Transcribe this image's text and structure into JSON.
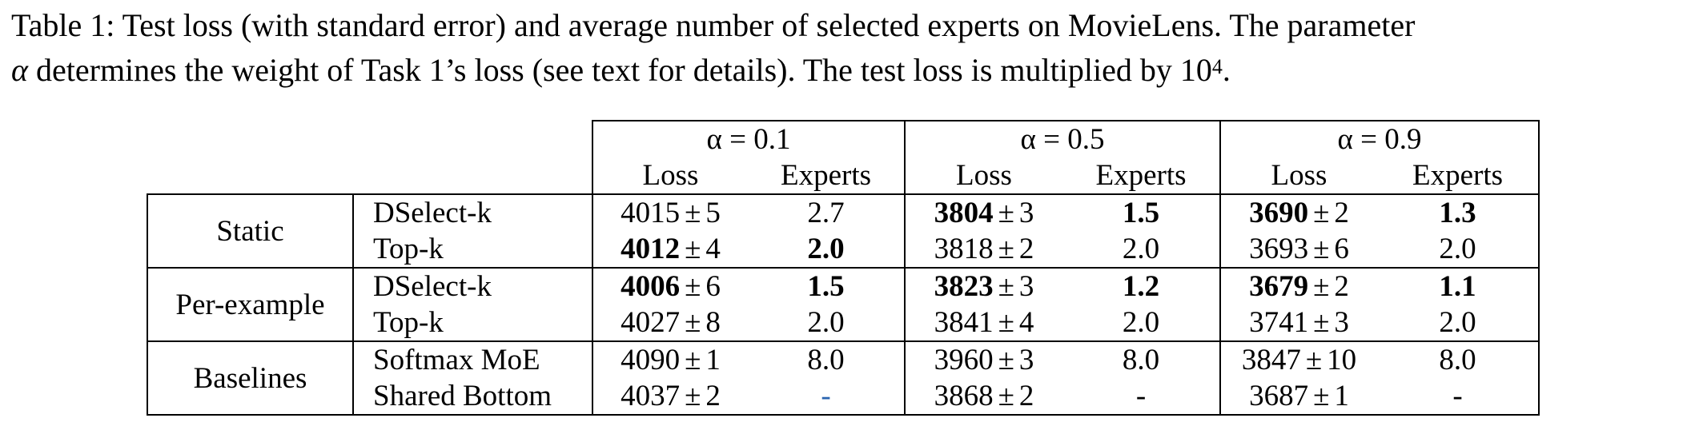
{
  "caption": {
    "label": "Table 1:",
    "line1": "Test loss (with standard error) and average number of selected experts on MovieLens. The parameter",
    "alpha_symbol": "α",
    "line2": "determines the weight of Task 1’s loss (see text for details). The test loss is multiplied by 10",
    "exponent": "4",
    "end": "."
  },
  "table": {
    "group_headers": [
      "α = 0.1",
      "α = 0.5",
      "α = 0.9"
    ],
    "sub_headers": [
      "Loss",
      "Experts",
      "Loss",
      "Experts",
      "Loss",
      "Experts"
    ],
    "pm": "±",
    "sections": [
      {
        "name": "Static",
        "rows": [
          {
            "method": "DSelect-k",
            "cells": [
              {
                "mean": "4015",
                "se": "5",
                "bold": false
              },
              {
                "val": "2.7",
                "bold": false
              },
              {
                "mean": "3804",
                "se": "3",
                "bold": true
              },
              {
                "val": "1.5",
                "bold": true
              },
              {
                "mean": "3690",
                "se": "2",
                "bold": true
              },
              {
                "val": "1.3",
                "bold": true
              }
            ]
          },
          {
            "method": "Top-k",
            "cells": [
              {
                "mean": "4012",
                "se": "4",
                "bold": true
              },
              {
                "val": "2.0",
                "bold": true
              },
              {
                "mean": "3818",
                "se": "2",
                "bold": false
              },
              {
                "val": "2.0",
                "bold": false
              },
              {
                "mean": "3693",
                "se": "6",
                "bold": false
              },
              {
                "val": "2.0",
                "bold": false
              }
            ]
          }
        ]
      },
      {
        "name": "Per-example",
        "rows": [
          {
            "method": "DSelect-k",
            "cells": [
              {
                "mean": "4006",
                "se": "6",
                "bold": true
              },
              {
                "val": "1.5",
                "bold": true
              },
              {
                "mean": "3823",
                "se": "3",
                "bold": true
              },
              {
                "val": "1.2",
                "bold": true
              },
              {
                "mean": "3679",
                "se": "2",
                "bold": true
              },
              {
                "val": "1.1",
                "bold": true
              }
            ]
          },
          {
            "method": "Top-k",
            "cells": [
              {
                "mean": "4027",
                "se": "8",
                "bold": false
              },
              {
                "val": "2.0",
                "bold": false
              },
              {
                "mean": "3841",
                "se": "4",
                "bold": false
              },
              {
                "val": "2.0",
                "bold": false
              },
              {
                "mean": "3741",
                "se": "3",
                "bold": false
              },
              {
                "val": "2.0",
                "bold": false
              }
            ]
          }
        ]
      },
      {
        "name": "Baselines",
        "rows": [
          {
            "method": "Softmax MoE",
            "cells": [
              {
                "mean": "4090",
                "se": "1",
                "bold": false
              },
              {
                "val": "8.0",
                "bold": false
              },
              {
                "mean": "3960",
                "se": "3",
                "bold": false
              },
              {
                "val": "8.0",
                "bold": false
              },
              {
                "mean": "3847",
                "se": "10",
                "bold": false
              },
              {
                "val": "8.0",
                "bold": false
              }
            ]
          },
          {
            "method": "Shared Bottom",
            "cells": [
              {
                "mean": "4037",
                "se": "2",
                "bold": false
              },
              {
                "val": "-",
                "bold": false,
                "color": "#2a64b0"
              },
              {
                "mean": "3868",
                "se": "2",
                "bold": false
              },
              {
                "val": "-",
                "bold": false
              },
              {
                "mean": "3687",
                "se": "1",
                "bold": false
              },
              {
                "val": "-",
                "bold": false
              }
            ]
          }
        ]
      }
    ]
  }
}
